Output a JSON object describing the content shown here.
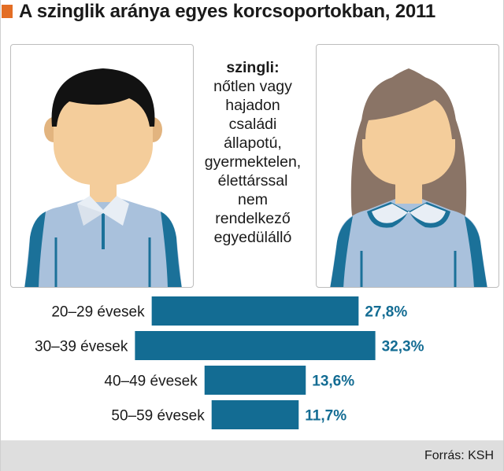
{
  "title": "A szinglik aránya egyes korcsoportokban, 2011",
  "definition": {
    "term": "szingli:",
    "body": "nőtlen vagy\nhajadon\ncsaládi\nállapotú,\ngyermektelen,\nélettárssal\nnem\nrendelkező\negyedülálló"
  },
  "colors": {
    "accent": "#e36d24",
    "bar": "#136c93",
    "value_text": "#136c93",
    "shirt": "#a9c1dc",
    "skin": "#f4cd9b",
    "man_hair": "#121212",
    "woman_hair": "#8a7466"
  },
  "icons": [
    "man-avatar-icon",
    "woman-avatar-icon"
  ],
  "chart_data": {
    "type": "bar",
    "orientation": "horizontal",
    "categories": [
      "20–29 évesek",
      "30–39 évesek",
      "40–49 évesek",
      "50–59 évesek"
    ],
    "values": [
      27.8,
      32.3,
      13.6,
      11.7
    ],
    "value_labels": [
      "27,8%",
      "32,3%",
      "13,6%",
      "11,7%"
    ],
    "unit": "%",
    "bars_centered": true
  },
  "source": "Forrás: KSH"
}
